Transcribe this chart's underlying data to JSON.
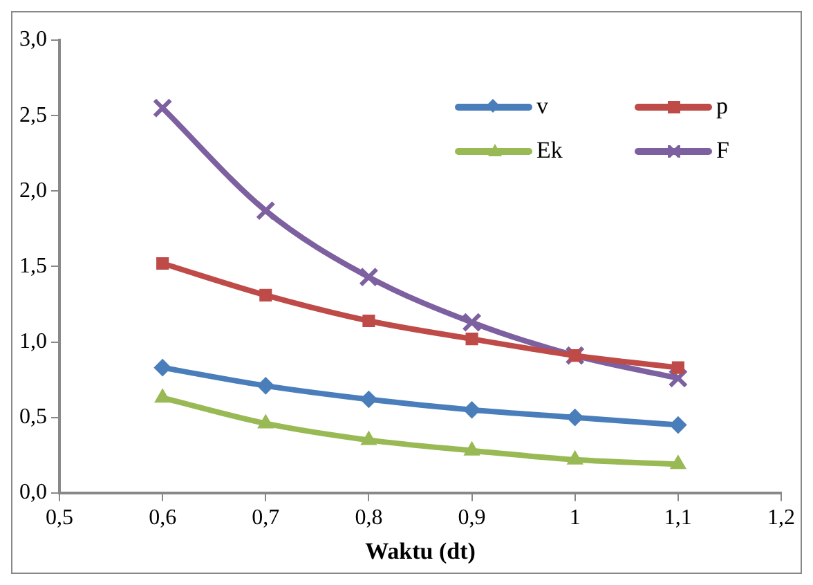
{
  "chart_data": {
    "type": "line",
    "xlabel": "Waktu (dt)",
    "x": [
      0.6,
      0.7,
      0.8,
      0.9,
      1,
      1.1
    ],
    "series": [
      {
        "name": "v",
        "color": "#4a7ebb",
        "marker": "diamond",
        "values": [
          0.83,
          0.71,
          0.62,
          0.55,
          0.5,
          0.45
        ]
      },
      {
        "name": "p",
        "color": "#be4b48",
        "marker": "square",
        "values": [
          1.52,
          1.31,
          1.14,
          1.02,
          0.91,
          0.83
        ]
      },
      {
        "name": "Ek",
        "color": "#98b954",
        "marker": "triangle",
        "values": [
          0.63,
          0.46,
          0.35,
          0.28,
          0.22,
          0.19
        ]
      },
      {
        "name": "F",
        "color": "#7d60a0",
        "marker": "cross",
        "values": [
          2.55,
          1.87,
          1.43,
          1.13,
          0.91,
          0.76
        ]
      }
    ],
    "xlim": [
      0.5,
      1.2
    ],
    "xticks": [
      {
        "value": 0.5,
        "label": "0,5"
      },
      {
        "value": 0.6,
        "label": "0,6"
      },
      {
        "value": 0.7,
        "label": "0,7"
      },
      {
        "value": 0.8,
        "label": "0,8"
      },
      {
        "value": 0.9,
        "label": "0,9"
      },
      1,
      {
        "value": 1.1,
        "label": "1,1"
      },
      {
        "value": 1.2,
        "label": "1,2"
      }
    ],
    "ylim": [
      0,
      3
    ],
    "yticks": [
      {
        "value": 0,
        "label": "0,0"
      },
      {
        "value": 0.5,
        "label": "0,5"
      },
      {
        "value": 1,
        "label": "1,0"
      },
      {
        "value": 1.5,
        "label": "1,5"
      },
      {
        "value": 2,
        "label": "2,0"
      },
      {
        "value": 2.5,
        "label": "2,5"
      },
      {
        "value": 3,
        "label": "3,0"
      }
    ],
    "grid": false,
    "legend": "top right",
    "line_style": "solid"
  }
}
